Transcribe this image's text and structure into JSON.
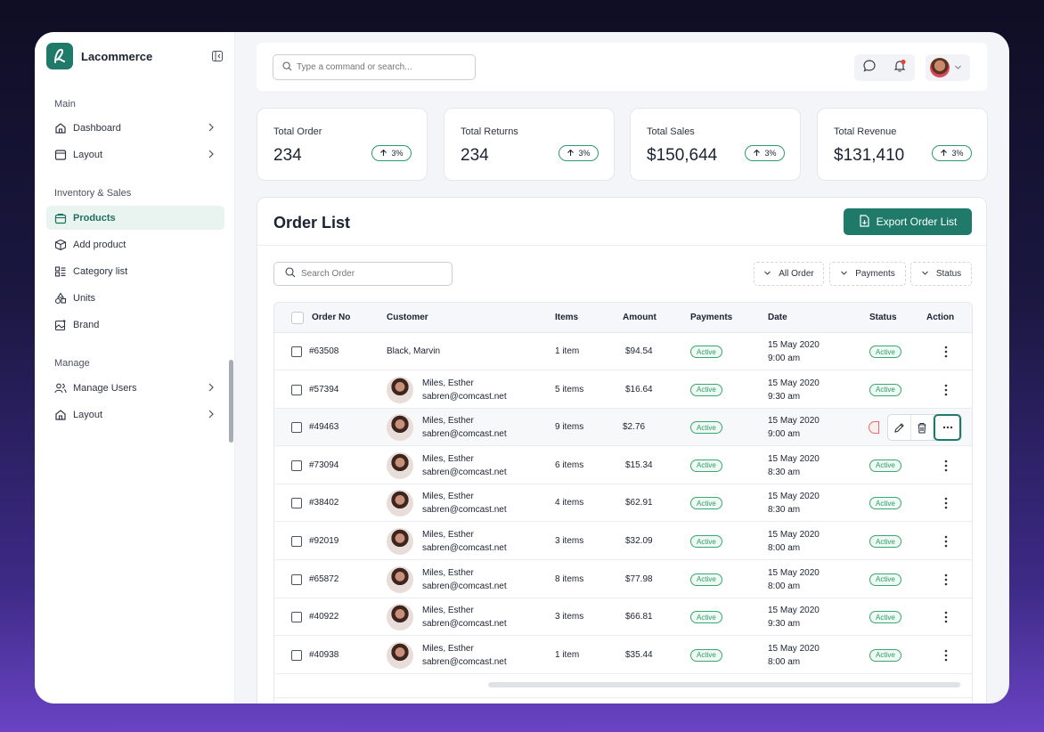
{
  "brand": {
    "name": "Lacommerce"
  },
  "sidebar": {
    "sections": [
      {
        "title": "Main",
        "items": [
          {
            "label": "Dashboard",
            "icon": "home-icon",
            "chevron": true
          },
          {
            "label": "Layout",
            "icon": "layout-icon",
            "chevron": true
          }
        ]
      },
      {
        "title": "Inventory & Sales",
        "items": [
          {
            "label": "Products",
            "icon": "bag-icon",
            "active": true
          },
          {
            "label": "Add product",
            "icon": "box-icon"
          },
          {
            "label": "Category list",
            "icon": "list-icon"
          },
          {
            "label": "Units",
            "icon": "shapes-icon"
          },
          {
            "label": "Brand",
            "icon": "image-icon"
          }
        ]
      },
      {
        "title": "Manage",
        "items": [
          {
            "label": "Manage Users",
            "icon": "users-icon",
            "chevron": true
          },
          {
            "label": "Layout",
            "icon": "home-icon",
            "chevron": true
          }
        ]
      }
    ]
  },
  "topbar": {
    "search_placeholder": "Type a command or search..."
  },
  "stats": [
    {
      "label": "Total Order",
      "value": "234",
      "change": "3%"
    },
    {
      "label": "Total Returns",
      "value": "234",
      "change": "3%"
    },
    {
      "label": "Total Sales",
      "value": "$150,644",
      "change": "3%"
    },
    {
      "label": "Total Revenue",
      "value": "$131,410",
      "change": "3%"
    }
  ],
  "orders": {
    "title": "Order List",
    "export_label": "Export Order List",
    "search_placeholder": "Search Order",
    "filters": [
      "All Order",
      "Payments",
      "Status"
    ],
    "columns": {
      "order_no": "Order No",
      "customer": "Customer",
      "items": "Items",
      "amount": "Amount",
      "payments": "Payments",
      "date": "Date",
      "status": "Status",
      "action": "Action"
    },
    "rows": [
      {
        "order": "#63508",
        "name": "Black, Marvin",
        "email": "",
        "items": "1 item",
        "amount": "$94.54",
        "payment": "Active",
        "date": "15 May 2020",
        "time": "9:00 am",
        "status": "Active"
      },
      {
        "order": "#57394",
        "name": "Miles, Esther",
        "email": "sabren@comcast.net",
        "items": "5 items",
        "amount": "$16.64",
        "payment": "Active",
        "date": "15 May 2020",
        "time": "9:30 am",
        "status": "Active"
      },
      {
        "order": "#49463",
        "name": "Miles, Esther",
        "email": "sabren@comcast.net",
        "items": "9 items",
        "amount": "$2.76",
        "payment": "Active",
        "date": "15 May 2020",
        "time": "9:00 am",
        "status": ""
      },
      {
        "order": "#73094",
        "name": "Miles, Esther",
        "email": "sabren@comcast.net",
        "items": "6 items",
        "amount": "$15.34",
        "payment": "Active",
        "date": "15 May 2020",
        "time": "8:30 am",
        "status": "Active"
      },
      {
        "order": "#38402",
        "name": "Miles, Esther",
        "email": "sabren@comcast.net",
        "items": "4 items",
        "amount": "$62.91",
        "payment": "Active",
        "date": "15 May 2020",
        "time": "8:30 am",
        "status": "Active"
      },
      {
        "order": "#92019",
        "name": "Miles, Esther",
        "email": "sabren@comcast.net",
        "items": "3 items",
        "amount": "$32.09",
        "payment": "Active",
        "date": "15 May 2020",
        "time": "8:00 am",
        "status": "Active"
      },
      {
        "order": "#65872",
        "name": "Miles, Esther",
        "email": "sabren@comcast.net",
        "items": "8 items",
        "amount": "$77.98",
        "payment": "Active",
        "date": "15 May 2020",
        "time": "8:00 am",
        "status": "Active"
      },
      {
        "order": "#40922",
        "name": "Miles, Esther",
        "email": "sabren@comcast.net",
        "items": "3 items",
        "amount": "$66.81",
        "payment": "Active",
        "date": "15 May 2020",
        "time": "9:30 am",
        "status": "Active"
      },
      {
        "order": "#40938",
        "name": "Miles, Esther",
        "email": "sabren@comcast.net",
        "items": "1 item",
        "amount": "$35.44",
        "payment": "Active",
        "date": "15 May 2020",
        "time": "8:00 am",
        "status": "Active"
      }
    ]
  },
  "colors": {
    "accent": "#1f7a6a",
    "success": "#2f9a6c",
    "danger": "#e26d6d"
  }
}
